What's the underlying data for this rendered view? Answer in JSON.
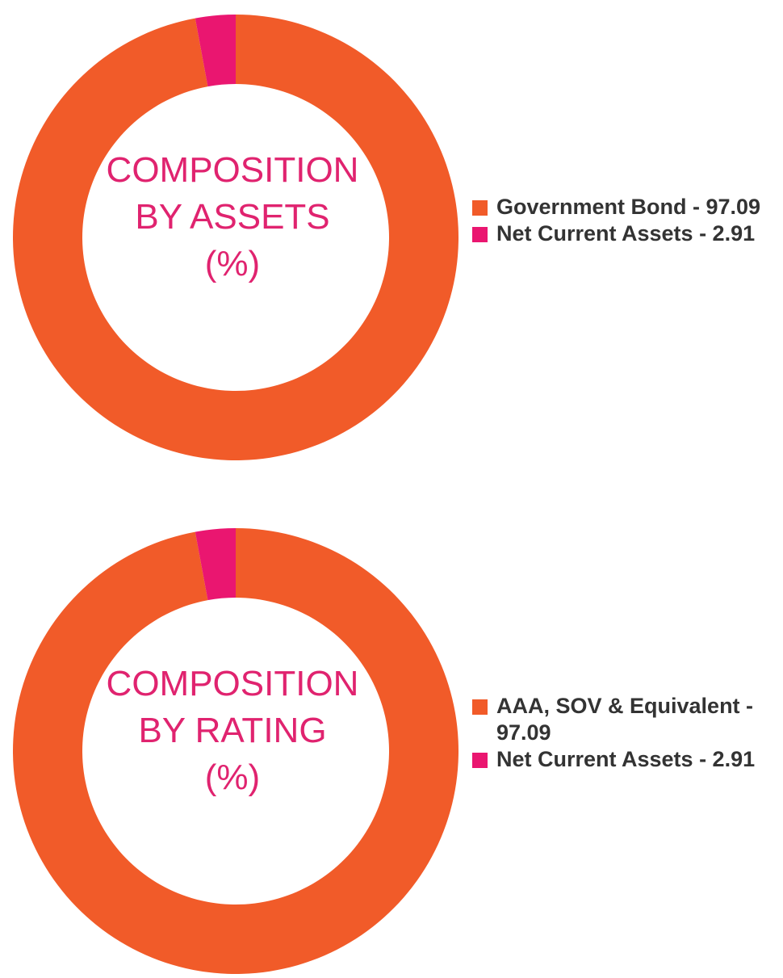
{
  "colors": {
    "orange": "#f15b29",
    "pink": "#ea1670",
    "text": "#333333",
    "title": "#e0236f"
  },
  "chart_data": [
    {
      "type": "pie",
      "title_lines": [
        "COMPOSITION",
        "BY ASSETS",
        "(%)"
      ],
      "slices": [
        {
          "label": "Government Bond - 97.09",
          "value": 97.09,
          "color": "#f15b29"
        },
        {
          "label": "Net Current Assets - 2.91",
          "value": 2.91,
          "color": "#ea1670"
        }
      ],
      "legend_position": "right"
    },
    {
      "type": "pie",
      "title_lines": [
        "COMPOSITION",
        "BY RATING",
        "(%)"
      ],
      "slices": [
        {
          "label": "AAA, SOV & Equivalent - 97.09",
          "value": 97.09,
          "color": "#f15b29"
        },
        {
          "label": "Net Current Assets - 2.91",
          "value": 2.91,
          "color": "#ea1670"
        }
      ],
      "legend_position": "right"
    }
  ]
}
